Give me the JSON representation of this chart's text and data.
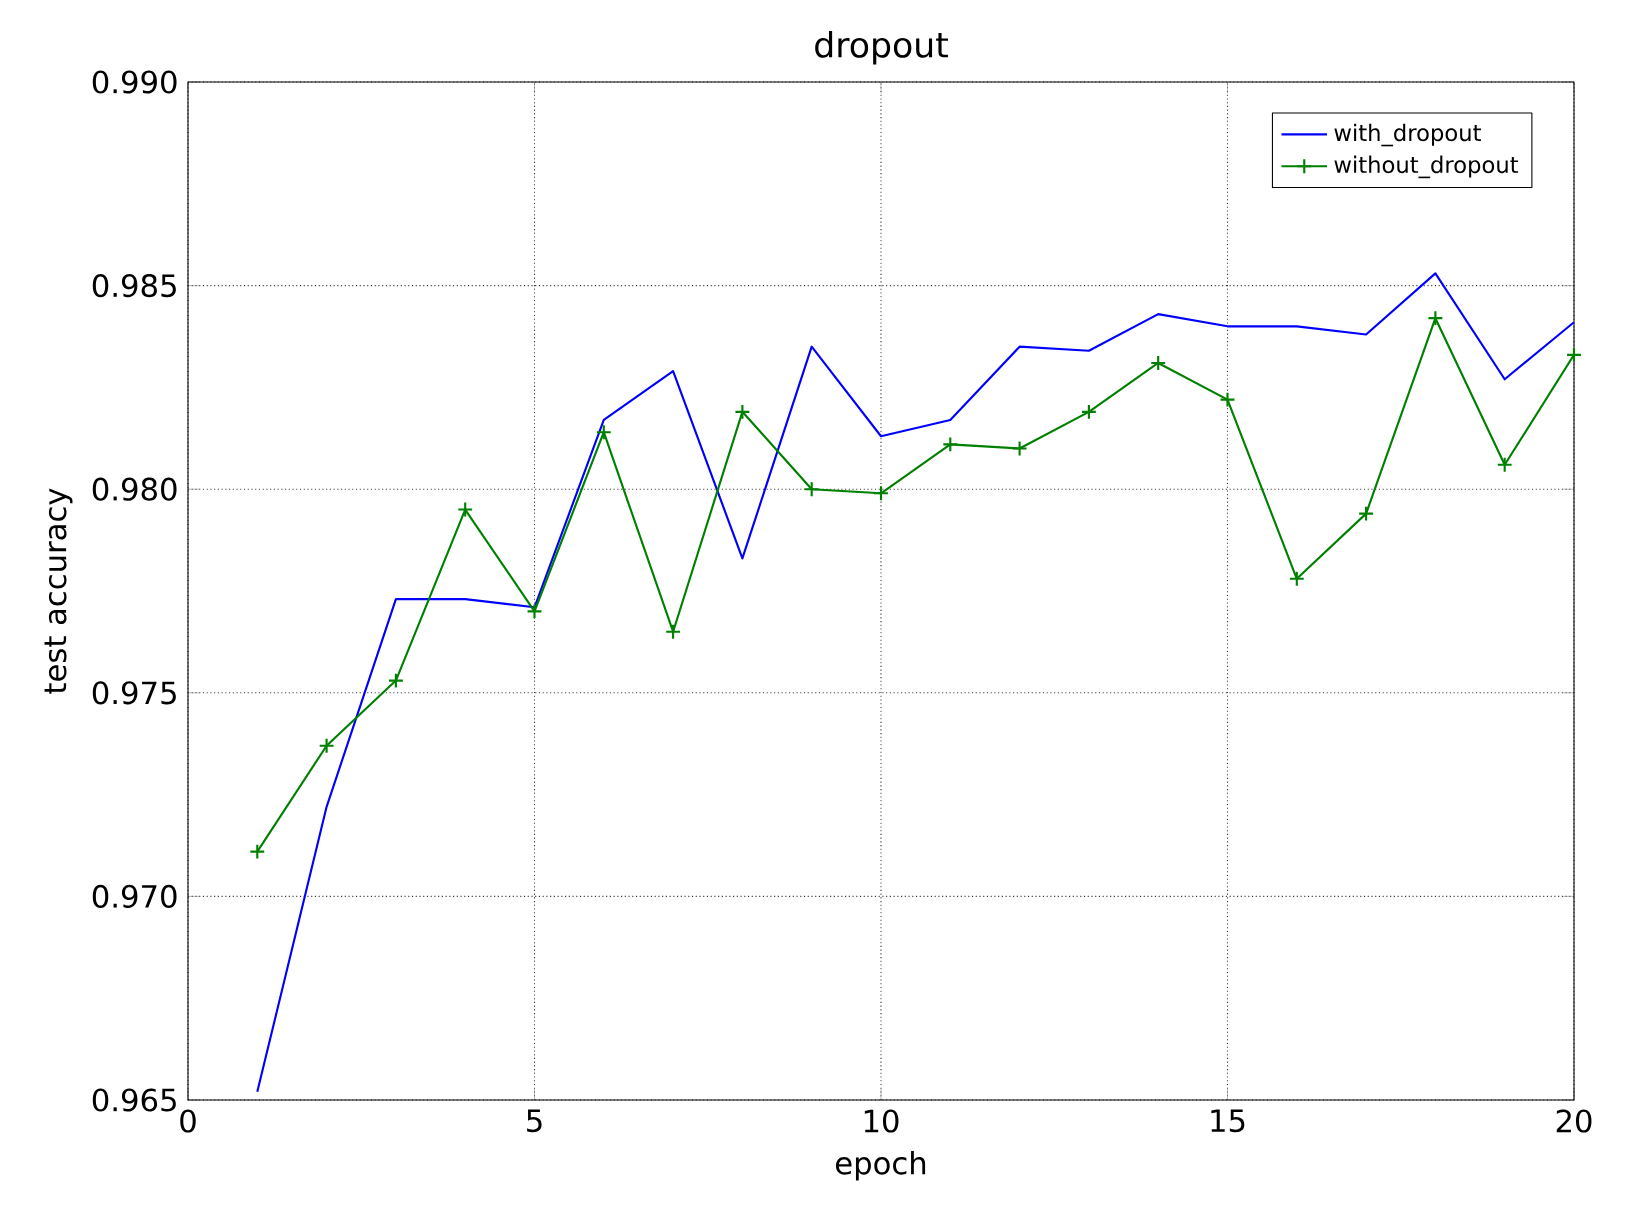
{
  "chart_data": {
    "type": "line",
    "title": "dropout",
    "xlabel": "epoch",
    "ylabel": "test accuracy",
    "x": [
      1,
      2,
      3,
      4,
      5,
      6,
      7,
      8,
      9,
      10,
      11,
      12,
      13,
      14,
      15,
      16,
      17,
      18,
      19,
      20
    ],
    "series": [
      {
        "name": "with_dropout",
        "color": "#0000ff",
        "marker": "none",
        "values": [
          0.9652,
          0.9722,
          0.9773,
          0.9773,
          0.9771,
          0.9817,
          0.9829,
          0.9783,
          0.9835,
          0.9813,
          0.9817,
          0.9835,
          0.9834,
          0.9843,
          0.984,
          0.984,
          0.9838,
          0.9853,
          0.9827,
          0.9841
        ]
      },
      {
        "name": "without_dropout",
        "color": "#008000",
        "marker": "cross",
        "values": [
          0.9711,
          0.9737,
          0.9753,
          0.9795,
          0.977,
          0.9814,
          0.9765,
          0.9819,
          0.98,
          0.9799,
          0.9811,
          0.981,
          0.9819,
          0.9831,
          0.9822,
          0.9778,
          0.9794,
          0.9842,
          0.9806,
          0.9833
        ]
      }
    ],
    "xlim": [
      0,
      20
    ],
    "xticks": [
      0,
      5,
      10,
      15,
      20
    ],
    "ylim": [
      0.965,
      0.99
    ],
    "yticks": [
      0.965,
      {
        "value": 0.97,
        "label": "0.970"
      },
      0.975,
      {
        "value": 0.98,
        "label": "0.980"
      },
      0.985,
      {
        "value": 0.99,
        "label": "0.990"
      }
    ],
    "grid": true,
    "legend": "top right",
    "line_style": "solid"
  }
}
